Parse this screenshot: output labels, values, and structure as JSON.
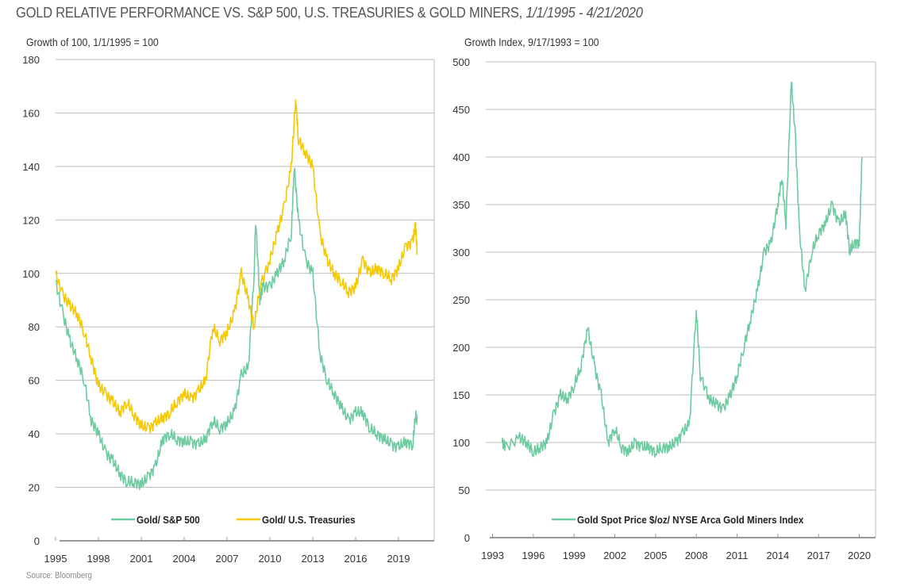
{
  "title": "GOLD RELATIVE PERFORMANCE VS. S&P 500, U.S. TREASURIES & GOLD MINERS,",
  "title_dates": "1/1/1995 - 4/21/2020",
  "source": "Source: Bloomberg",
  "colors": {
    "green": "#6ecba0",
    "yellow": "#f5c800",
    "grid": "#bdbdbd"
  },
  "chart_data": [
    {
      "type": "line",
      "ylabel": "Growth of 100, 1/1/1995 = 100",
      "ylim": [
        0,
        180
      ],
      "yticks": [
        0,
        20,
        40,
        60,
        80,
        100,
        120,
        140,
        160,
        180
      ],
      "xlim": [
        1995,
        2021.5
      ],
      "xticks": [
        1995,
        1998,
        2001,
        2004,
        2007,
        2010,
        2013,
        2016,
        2019
      ],
      "legend": "bottom",
      "series": [
        {
          "name": "Gold/ S&P 500",
          "color": "#6ecba0",
          "x": [
            1995,
            1995.5,
            1996,
            1996.5,
            1997,
            1997.5,
            1998,
            1998.5,
            1999,
            1999.5,
            2000,
            2000.5,
            2001,
            2001.5,
            2002,
            2002.5,
            2003,
            2003.5,
            2004,
            2004.5,
            2005,
            2005.5,
            2006,
            2006.5,
            2007,
            2007.5,
            2008,
            2008.5,
            2008.9,
            2009,
            2009.3,
            2009.5,
            2010,
            2010.5,
            2011,
            2011.5,
            2011.7,
            2012,
            2012.5,
            2013,
            2013.5,
            2014,
            2014.5,
            2015,
            2015.5,
            2016,
            2016.5,
            2017,
            2017.5,
            2018,
            2018.5,
            2019,
            2019.5,
            2020,
            2020.2,
            2020.3
          ],
          "y": [
            97,
            85,
            75,
            68,
            60,
            45,
            40,
            33,
            30,
            25,
            22,
            22,
            21,
            24,
            28,
            38,
            40,
            38,
            37,
            37,
            36,
            38,
            45,
            42,
            44,
            48,
            62,
            65,
            100,
            120,
            90,
            95,
            95,
            100,
            105,
            115,
            140,
            120,
            105,
            100,
            70,
            60,
            55,
            50,
            45,
            48,
            48,
            42,
            40,
            38,
            36,
            35,
            37,
            36,
            48,
            45
          ]
        },
        {
          "name": "Gold/ U.S. Treasuries",
          "color": "#f5c800",
          "x": [
            1995,
            1995.5,
            1996,
            1996.5,
            1997,
            1997.5,
            1998,
            1998.5,
            1999,
            1999.5,
            2000,
            2000.5,
            2001,
            2001.5,
            2002,
            2002.5,
            2003,
            2003.5,
            2004,
            2004.5,
            2005,
            2005.5,
            2006,
            2006.5,
            2007,
            2007.5,
            2008,
            2008.5,
            2008.9,
            2009.3,
            2010,
            2010.5,
            2011,
            2011.5,
            2011.8,
            2012,
            2012.5,
            2013,
            2013.5,
            2014,
            2014.5,
            2015,
            2015.5,
            2016,
            2016.5,
            2017,
            2017.5,
            2018,
            2018.5,
            2019,
            2019.5,
            2020,
            2020.2,
            2020.3
          ],
          "y": [
            100,
            92,
            88,
            85,
            78,
            68,
            58,
            55,
            52,
            48,
            52,
            47,
            43,
            42,
            44,
            46,
            48,
            52,
            55,
            53,
            56,
            60,
            80,
            75,
            78,
            85,
            100,
            90,
            80,
            95,
            105,
            115,
            125,
            140,
            165,
            150,
            145,
            140,
            115,
            105,
            100,
            97,
            93,
            95,
            105,
            100,
            102,
            100,
            98,
            102,
            110,
            112,
            118,
            108
          ]
        }
      ]
    },
    {
      "type": "line",
      "ylabel": "Growth Index, 9/17/1993 = 100",
      "ylim": [
        0,
        500
      ],
      "yticks": [
        0,
        50,
        100,
        150,
        200,
        250,
        300,
        350,
        400,
        450,
        500
      ],
      "xlim": [
        1992.5,
        2021.2
      ],
      "xticks": [
        1993,
        1996,
        1999,
        2002,
        2005,
        2008,
        2011,
        2014,
        2017,
        2020
      ],
      "legend": "bottom",
      "series": [
        {
          "name": "Gold Spot Price $/oz/ NYSE Arca Gold Miners Index",
          "color": "#6ecba0",
          "x": [
            1993.7,
            1994,
            1995,
            1995.5,
            1996,
            1996.5,
            1997,
            1997.5,
            1998,
            1998.5,
            1999,
            1999.5,
            2000,
            2000.5,
            2001,
            2001.5,
            2002,
            2002.5,
            2003,
            2003.5,
            2004,
            2004.5,
            2005,
            2005.5,
            2006,
            2006.5,
            2007,
            2007.5,
            2008,
            2008.3,
            2009,
            2009.5,
            2010,
            2010.5,
            2011,
            2011.5,
            2012,
            2012.5,
            2013,
            2013.5,
            2014,
            2014.3,
            2014.6,
            2015,
            2015.3,
            2015.6,
            2016,
            2016.5,
            2017,
            2017.5,
            2018,
            2018.5,
            2019,
            2019.3,
            2019.6,
            2020,
            2020.2
          ],
          "y": [
            100,
            95,
            105,
            100,
            90,
            95,
            100,
            130,
            150,
            145,
            160,
            180,
            220,
            180,
            150,
            100,
            115,
            95,
            90,
            100,
            95,
            95,
            90,
            95,
            95,
            100,
            110,
            120,
            240,
            170,
            145,
            140,
            135,
            150,
            170,
            200,
            230,
            260,
            300,
            310,
            350,
            380,
            330,
            480,
            420,
            320,
            260,
            300,
            320,
            330,
            350,
            330,
            340,
            300,
            310,
            310,
            400
          ]
        }
      ]
    }
  ]
}
